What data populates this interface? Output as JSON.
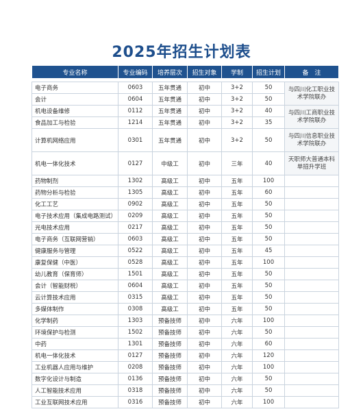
{
  "title": "2025年招生计划表",
  "table": {
    "header": [
      "专业名称",
      "专业编码",
      "培养层次",
      "招生对象",
      "学制",
      "招生计划",
      "备　注"
    ],
    "rows": [
      [
        "电子商务",
        "0603",
        "五年贯通",
        "初中",
        "3+2",
        "50"
      ],
      [
        "会计",
        "0604",
        "五年贯通",
        "初中",
        "3+2",
        "50"
      ],
      [
        "机电设备维修",
        "0112",
        "五年贯通",
        "初中",
        "3+2",
        "40"
      ],
      [
        "食品加工与检验",
        "1214",
        "五年贯通",
        "初中",
        "3+2",
        "35"
      ],
      [
        "计算机网络应用",
        "0301",
        "五年贯通",
        "初中",
        "3+2",
        "50"
      ],
      [
        "机电一体化技术",
        "0127",
        "中级工",
        "初中",
        "三年",
        "40"
      ],
      [
        "药物制剂",
        "1302",
        "高级工",
        "初中",
        "五年",
        "100"
      ],
      [
        "药物分析与检验",
        "1305",
        "高级工",
        "初中",
        "五年",
        "60"
      ],
      [
        "化工工艺",
        "0902",
        "高级工",
        "初中",
        "五年",
        "50"
      ],
      [
        "电子技术应用（集成电路测试）",
        "0209",
        "高级工",
        "初中",
        "五年",
        "50"
      ],
      [
        "光电技术应用",
        "0217",
        "高级工",
        "初中",
        "五年",
        "50"
      ],
      [
        "电子商务（互联网营销）",
        "0603",
        "高级工",
        "初中",
        "五年",
        "50"
      ],
      [
        "健康服务与管理",
        "0522",
        "高级工",
        "初中",
        "五年",
        "45"
      ],
      [
        "康复保健（中医）",
        "0528",
        "高级工",
        "初中",
        "五年",
        "100"
      ],
      [
        "幼儿教育（保育师）",
        "1501",
        "高级工",
        "初中",
        "五年",
        "50"
      ],
      [
        "会计（智能财税）",
        "0604",
        "高级工",
        "初中",
        "五年",
        "50"
      ],
      [
        "云计算技术应用",
        "0315",
        "高级工",
        "初中",
        "五年",
        "50"
      ],
      [
        "多媒体制作",
        "0308",
        "高级工",
        "初中",
        "五年",
        "50"
      ],
      [
        "化学制药",
        "1303",
        "预备技师",
        "初中",
        "六年",
        "100"
      ],
      [
        "环境保护与检测",
        "1502",
        "预备技师",
        "初中",
        "六年",
        "50"
      ],
      [
        "中药",
        "1301",
        "预备技师",
        "初中",
        "六年",
        "60"
      ],
      [
        "机电一体化技术",
        "0127",
        "预备技师",
        "初中",
        "六年",
        "120"
      ],
      [
        "工业机器人应用与维护",
        "0208",
        "预备技师",
        "初中",
        "六年",
        "100"
      ],
      [
        "数字化设计与制造",
        "0136",
        "预备技师",
        "初中",
        "六年",
        "50"
      ],
      [
        "人工智能技术应用",
        "0318",
        "预备技师",
        "初中",
        "六年",
        "50"
      ],
      [
        "工业互联网技术应用",
        "0316",
        "预备技师",
        "初中",
        "六年",
        "100"
      ]
    ],
    "notes": [
      "与四川化工职业技术学院联办",
      "与四川工商职业技术学院联办",
      "与四川信息职业技术学院联办",
      "天职师大普通本科单招升学班"
    ]
  }
}
